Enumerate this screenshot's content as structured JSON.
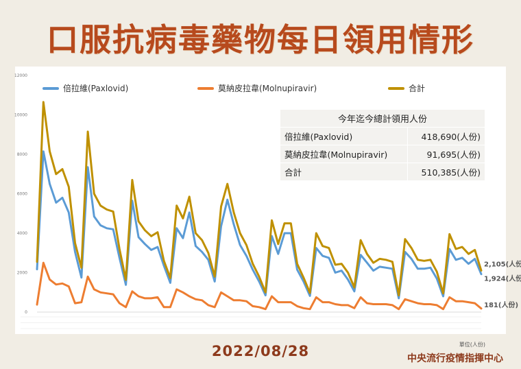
{
  "page": {
    "title": "口服抗病毒藥物每日領用情形",
    "date": "2022/08/28",
    "source": "中央流行疫情指揮中心",
    "unit": "單位(人份)"
  },
  "summary": {
    "header": "今年迄今總計領用人份",
    "rows": [
      {
        "label": "倍拉維(Paxlovid)",
        "value": "418,690(人份)"
      },
      {
        "label": "莫納皮拉韋(Molnupiravir)",
        "value": "91,695(人份)"
      },
      {
        "label": "合計",
        "value": "510,385(人份)"
      }
    ]
  },
  "end_labels": {
    "total": "2,105(人份)",
    "paxlovid": "1,924(人份)",
    "molnupiravir": "181(人份)"
  },
  "colors": {
    "paxlovid": "#5b9bd5",
    "molnupiravir": "#ed7d31",
    "total": "#bf9000",
    "title": "#b74a1d"
  },
  "chart_data": {
    "type": "line",
    "x_count": 80,
    "ylim": [
      0,
      12000
    ],
    "yticks": [
      0,
      2000,
      4000,
      6000,
      8000,
      10000,
      12000
    ],
    "grid": false,
    "legend_position": "top",
    "series": [
      {
        "name": "倍拉維(Paxlovid)",
        "key": "paxlovid",
        "values": [
          2170,
          8150,
          6500,
          5550,
          5800,
          5050,
          3050,
          1750,
          7350,
          4850,
          4400,
          4250,
          4200,
          2750,
          1380,
          5650,
          3800,
          3450,
          3150,
          3300,
          2350,
          1480,
          4250,
          3750,
          5050,
          3350,
          3050,
          2650,
          1550,
          4350,
          5700,
          4450,
          3400,
          2850,
          2150,
          1550,
          850,
          3850,
          2950,
          4000,
          4000,
          2150,
          1550,
          820,
          3250,
          2850,
          2750,
          2000,
          2100,
          1650,
          1050,
          2900,
          2500,
          2100,
          2300,
          2250,
          2200,
          700,
          3050,
          2700,
          2200,
          2200,
          2250,
          1700,
          800,
          3200,
          2650,
          2750,
          2450,
          2700,
          1924
        ]
      },
      {
        "name": "莫納皮拉韋(Molnupiravir)",
        "key": "molnupiravir",
        "values": [
          380,
          2500,
          1650,
          1400,
          1450,
          1300,
          450,
          500,
          1800,
          1150,
          1000,
          950,
          900,
          450,
          250,
          1050,
          800,
          700,
          700,
          750,
          250,
          250,
          1150,
          1000,
          800,
          650,
          600,
          350,
          250,
          1000,
          800,
          600,
          600,
          550,
          300,
          250,
          150,
          800,
          500,
          500,
          500,
          300,
          200,
          150,
          750,
          500,
          500,
          400,
          350,
          350,
          200,
          750,
          450,
          400,
          400,
          400,
          350,
          150,
          650,
          550,
          450,
          400,
          400,
          350,
          150,
          750,
          550,
          550,
          500,
          450,
          181
        ]
      },
      {
        "name": "合計",
        "key": "total",
        "values": [
          2550,
          10650,
          8150,
          7000,
          7250,
          6350,
          3500,
          2250,
          9150,
          6000,
          5400,
          5200,
          5100,
          3200,
          1630,
          6700,
          4600,
          4150,
          3850,
          4050,
          2600,
          1730,
          5400,
          4750,
          5850,
          4000,
          3650,
          3000,
          1800,
          5350,
          6500,
          5050,
          4000,
          3400,
          2450,
          1800,
          1000,
          4650,
          3450,
          4500,
          4500,
          2450,
          1750,
          970,
          4000,
          3350,
          3250,
          2400,
          2450,
          2000,
          1250,
          3650,
          2950,
          2500,
          2700,
          2650,
          2550,
          850,
          3700,
          3250,
          2650,
          2600,
          2650,
          2050,
          950,
          3950,
          3200,
          3300,
          2950,
          3150,
          2105
        ]
      }
    ]
  }
}
